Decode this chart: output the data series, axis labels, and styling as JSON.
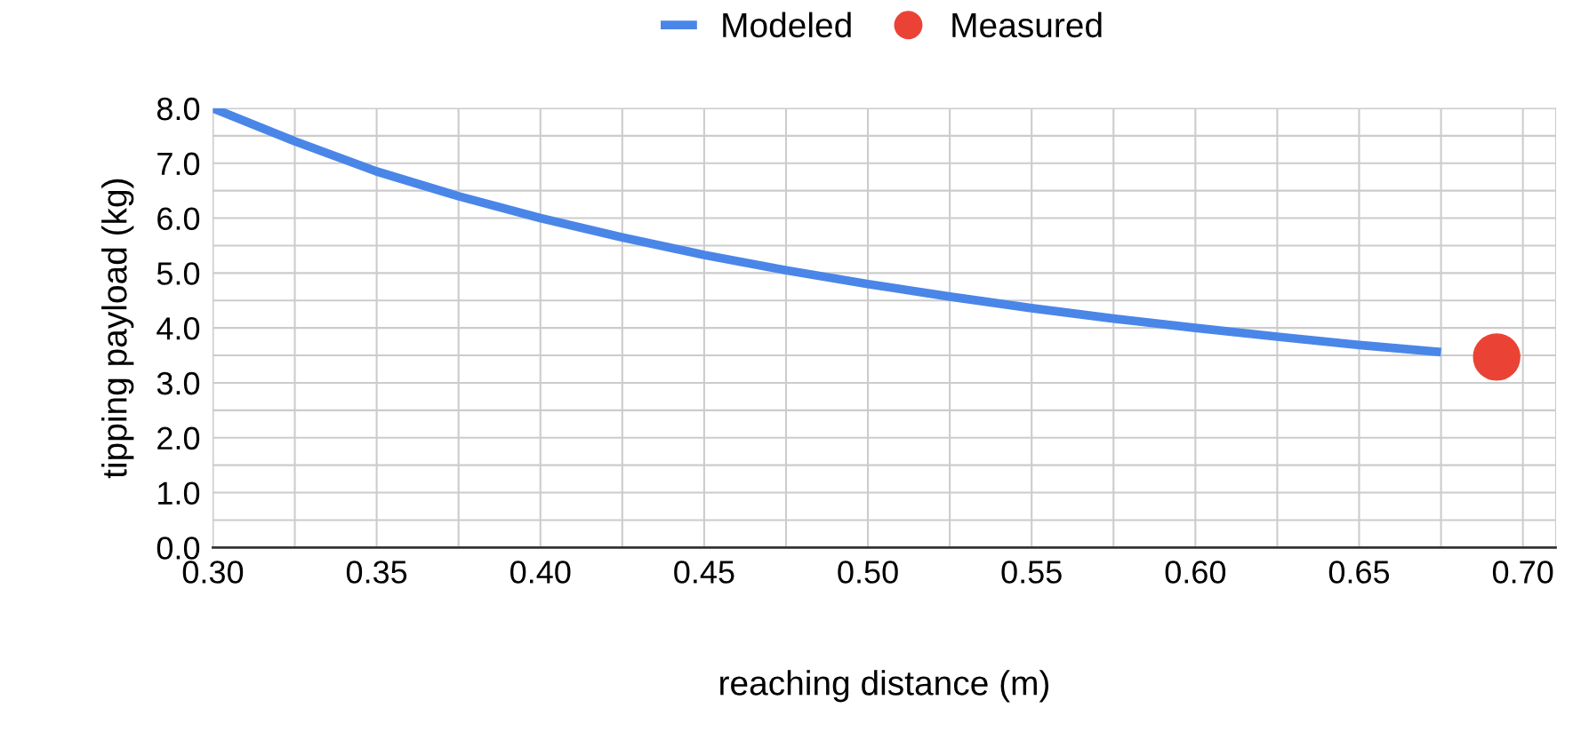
{
  "chart_data": {
    "type": "line",
    "xlabel": "reaching distance (m)",
    "ylabel": "tipping payload (kg)",
    "xlim": [
      0.3,
      0.71
    ],
    "ylim": [
      0,
      8.0
    ],
    "xticks": [
      {
        "value": 0.3,
        "label": "0.30"
      },
      {
        "value": 0.325,
        "label": null
      },
      {
        "value": 0.35,
        "label": "0.35"
      },
      {
        "value": 0.375,
        "label": null
      },
      {
        "value": 0.4,
        "label": "0.40"
      },
      {
        "value": 0.425,
        "label": null
      },
      {
        "value": 0.45,
        "label": "0.45"
      },
      {
        "value": 0.475,
        "label": null
      },
      {
        "value": 0.5,
        "label": "0.50"
      },
      {
        "value": 0.525,
        "label": null
      },
      {
        "value": 0.55,
        "label": "0.55"
      },
      {
        "value": 0.575,
        "label": null
      },
      {
        "value": 0.6,
        "label": "0.60"
      },
      {
        "value": 0.625,
        "label": null
      },
      {
        "value": 0.65,
        "label": "0.65"
      },
      {
        "value": 0.675,
        "label": null
      },
      {
        "value": 0.7,
        "label": "0.70"
      }
    ],
    "yticks": [
      {
        "value": 0,
        "label": "0.0"
      },
      {
        "value": 0.5,
        "label": null
      },
      {
        "value": 1,
        "label": "1.0"
      },
      {
        "value": 1.5,
        "label": null
      },
      {
        "value": 2,
        "label": "2.0"
      },
      {
        "value": 2.5,
        "label": null
      },
      {
        "value": 3,
        "label": "3.0"
      },
      {
        "value": 3.5,
        "label": null
      },
      {
        "value": 4,
        "label": "4.0"
      },
      {
        "value": 4.5,
        "label": null
      },
      {
        "value": 5,
        "label": "5.0"
      },
      {
        "value": 5.5,
        "label": null
      },
      {
        "value": 6,
        "label": "6.0"
      },
      {
        "value": 6.5,
        "label": null
      },
      {
        "value": 7,
        "label": "7.0"
      },
      {
        "value": 7.5,
        "label": null
      },
      {
        "value": 8,
        "label": "8.0"
      }
    ],
    "grid": true,
    "legend": "top",
    "series": [
      {
        "name": "Modeled",
        "color": "#4a86e8",
        "marker": "none",
        "x": [
          0.3,
          0.325,
          0.35,
          0.375,
          0.4,
          0.425,
          0.45,
          0.475,
          0.5,
          0.525,
          0.55,
          0.575,
          0.6,
          0.625,
          0.65,
          0.675
        ],
        "values": [
          8.0,
          7.4,
          6.85,
          6.4,
          6.0,
          5.65,
          5.33,
          5.05,
          4.8,
          4.57,
          4.36,
          4.17,
          4.0,
          3.84,
          3.69,
          3.56
        ]
      },
      {
        "name": "Measured",
        "type": "scatter",
        "color": "#ea4335",
        "marker": "circle",
        "x": [
          0.692
        ],
        "values": [
          3.47
        ]
      }
    ]
  }
}
